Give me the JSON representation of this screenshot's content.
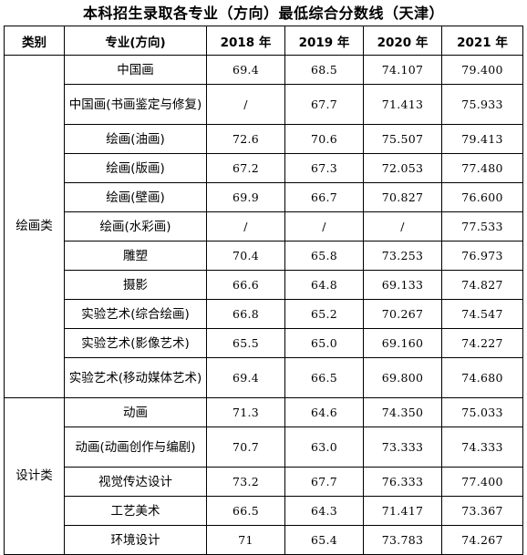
{
  "title": "本科招生录取各专业（方向）最低综合分数线（天津）",
  "table": {
    "headers": [
      "类别",
      "专业(方向)",
      "2018 年",
      "2019 年",
      "2020 年",
      "2021 年"
    ],
    "groups": [
      {
        "category": "绘画类",
        "rows": [
          {
            "major": "中国画",
            "y2018": "69.4",
            "y2019": "68.5",
            "y2020": "74.107",
            "y2021": "79.400"
          },
          {
            "major": "中国画(书画鉴定与修复)",
            "y2018": "/",
            "y2019": "67.7",
            "y2020": "71.413",
            "y2021": "75.933"
          },
          {
            "major": "绘画(油画)",
            "y2018": "72.6",
            "y2019": "70.6",
            "y2020": "75.507",
            "y2021": "79.413"
          },
          {
            "major": "绘画(版画)",
            "y2018": "67.2",
            "y2019": "67.3",
            "y2020": "72.053",
            "y2021": "77.480"
          },
          {
            "major": "绘画(壁画)",
            "y2018": "69.9",
            "y2019": "66.7",
            "y2020": "70.827",
            "y2021": "76.600"
          },
          {
            "major": "绘画(水彩画)",
            "y2018": "/",
            "y2019": "/",
            "y2020": "/",
            "y2021": "77.533"
          },
          {
            "major": "雕塑",
            "y2018": "70.4",
            "y2019": "65.8",
            "y2020": "73.253",
            "y2021": "76.973"
          },
          {
            "major": "摄影",
            "y2018": "66.6",
            "y2019": "64.8",
            "y2020": "69.133",
            "y2021": "74.827"
          },
          {
            "major": "实验艺术(综合绘画)",
            "y2018": "66.8",
            "y2019": "65.2",
            "y2020": "70.267",
            "y2021": "74.547"
          },
          {
            "major": "实验艺术(影像艺术)",
            "y2018": "65.5",
            "y2019": "65.0",
            "y2020": "69.160",
            "y2021": "74.227"
          },
          {
            "major": "实验艺术(移动媒体艺术)",
            "y2018": "69.4",
            "y2019": "66.5",
            "y2020": "69.800",
            "y2021": "74.680"
          }
        ]
      },
      {
        "category": "设计类",
        "rows": [
          {
            "major": "动画",
            "y2018": "71.3",
            "y2019": "64.6",
            "y2020": "74.350",
            "y2021": "75.033"
          },
          {
            "major": "动画(动画创作与编剧)",
            "y2018": "70.7",
            "y2019": "63.0",
            "y2020": "73.333",
            "y2021": "74.333"
          },
          {
            "major": "视觉传达设计",
            "y2018": "73.2",
            "y2019": "67.7",
            "y2020": "76.333",
            "y2021": "77.400"
          },
          {
            "major": "工艺美术",
            "y2018": "66.5",
            "y2019": "64.3",
            "y2020": "71.417",
            "y2021": "73.367"
          },
          {
            "major": "环境设计",
            "y2018": "71",
            "y2019": "65.4",
            "y2020": "73.783",
            "y2021": "74.267"
          }
        ]
      }
    ]
  }
}
